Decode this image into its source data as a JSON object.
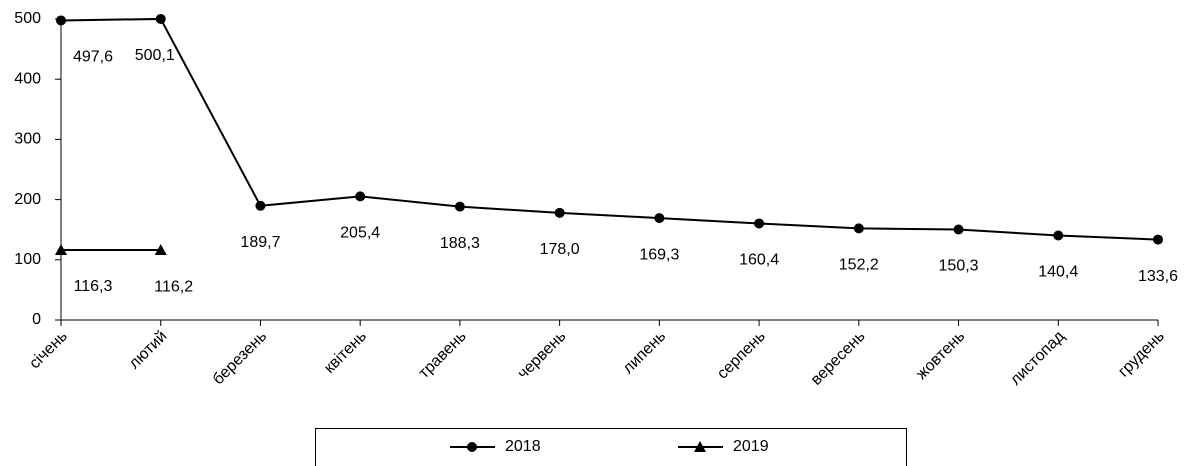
{
  "chart_data": {
    "type": "line",
    "categories": [
      "січень",
      "лютий",
      "березень",
      "квітень",
      "травень",
      "червень",
      "липень",
      "серпень",
      "вересень",
      "жовтень",
      "листопад",
      "грудень"
    ],
    "series": [
      {
        "name": "2018",
        "color": "#000000",
        "marker": "circle",
        "values": [
          497.6,
          500.1,
          189.7,
          205.4,
          188.3,
          178.0,
          169.3,
          160.4,
          152.2,
          150.3,
          140.4,
          133.6
        ],
        "value_labels": [
          "497,6",
          "500,1",
          "189,7",
          "205,4",
          "188,3",
          "178,0",
          "169,3",
          "160,4",
          "152,2",
          "150,3",
          "140,4",
          "133,6"
        ]
      },
      {
        "name": "2019",
        "color": "#000000",
        "marker": "triangle",
        "values": [
          116.3,
          116.2,
          null,
          null,
          null,
          null,
          null,
          null,
          null,
          null,
          null,
          null
        ],
        "value_labels": [
          "116,3",
          "116,2",
          null,
          null,
          null,
          null,
          null,
          null,
          null,
          null,
          null,
          null
        ]
      }
    ],
    "ylim": [
      0,
      500
    ],
    "yticks": [
      0,
      100,
      200,
      300,
      400,
      500
    ],
    "grid": false,
    "legend": "bottom"
  }
}
